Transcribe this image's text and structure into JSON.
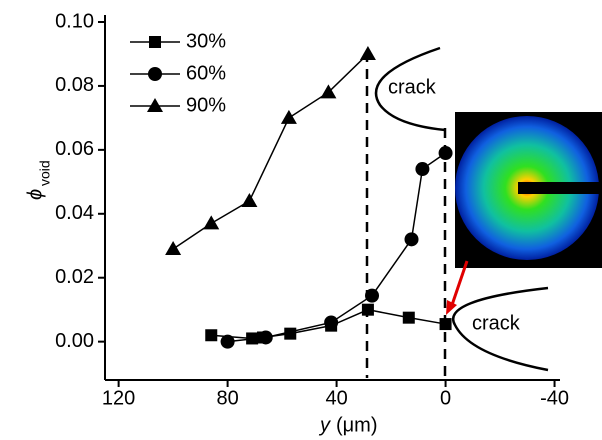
{
  "chart_data": {
    "type": "line",
    "xlabel": "y",
    "xlabel_unit": "(μm)",
    "ylabel": "ϕ",
    "ylabel_sub": "void",
    "xlim": [
      125,
      -42
    ],
    "xticks": [
      120,
      80,
      40,
      0,
      -40
    ],
    "ylim": [
      -0.012,
      0.1
    ],
    "yticks": [
      {
        "value": 0,
        "label": "0.00"
      },
      {
        "value": 0.02,
        "label": "0.02"
      },
      {
        "value": 0.04,
        "label": "0.04"
      },
      {
        "value": 0.06,
        "label": "0.06"
      },
      {
        "value": 0.08,
        "label": "0.08"
      },
      {
        "value": 0.1,
        "label": "0.10"
      }
    ],
    "legend": "upper left",
    "annotations": [
      "crack",
      "crack"
    ],
    "series": [
      {
        "name": "30%",
        "color": "#000000",
        "marker": "square",
        "x": [
          86,
          71,
          67,
          57,
          42,
          28.5,
          13.5,
          0
        ],
        "values": [
          0.002,
          0.001,
          0.0013,
          0.0025,
          0.005,
          0.01,
          0.0075,
          0.0055
        ]
      },
      {
        "name": "60%",
        "color": "#000000",
        "marker": "circle",
        "x": [
          80,
          66,
          42,
          27,
          12.5,
          8.5,
          0
        ],
        "values": [
          0,
          0.0013,
          0.006,
          0.0144,
          0.032,
          0.054,
          0.059
        ]
      },
      {
        "name": "90%",
        "color": "#000000",
        "marker": "triangle",
        "x": [
          100,
          86,
          72,
          57.5,
          43,
          28.5
        ],
        "values": [
          0.029,
          0.037,
          0.044,
          0.07,
          0.078,
          0.09
        ]
      }
    ]
  }
}
